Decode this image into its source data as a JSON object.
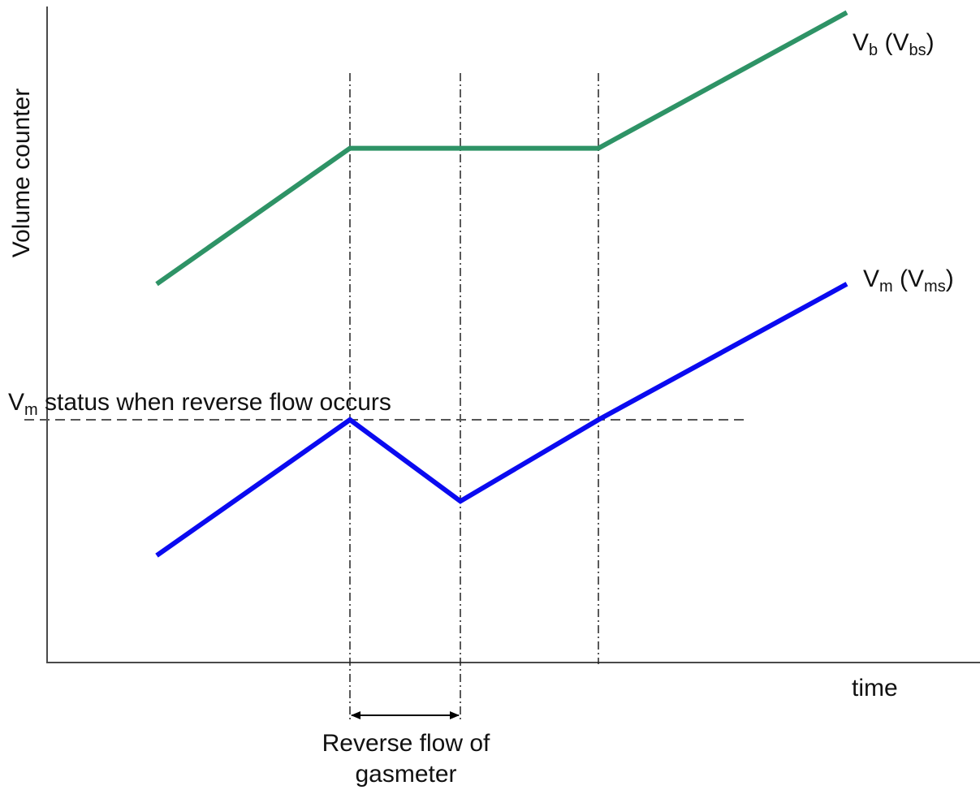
{
  "axes": {
    "y_label": "Volume counter",
    "x_label": "time"
  },
  "series": {
    "vb": {
      "label_main": "V",
      "label_sub": "b",
      "label_paren_open": " (V",
      "label_paren_sub": "bs",
      "label_paren_close": ")",
      "color": "#2e9366",
      "points": [
        [
          0,
          1.0
        ],
        [
          1,
          2.0
        ],
        [
          2,
          2.0
        ],
        [
          3,
          2.0
        ],
        [
          4,
          3.0
        ]
      ]
    },
    "vm": {
      "label_main": "V",
      "label_sub": "m",
      "label_paren_open": " (V",
      "label_paren_sub": "ms",
      "label_paren_close": ")",
      "color": "#0a0af0",
      "points": [
        [
          0,
          -1.0
        ],
        [
          1,
          0.0
        ],
        [
          2,
          -0.6
        ],
        [
          3,
          0.0
        ],
        [
          4,
          1.0
        ]
      ]
    }
  },
  "annotations": {
    "status_main": "V",
    "status_sub": "m",
    "status_text": " status when reverse flow occurs",
    "reverse_flow_line1": "Reverse flow of",
    "reverse_flow_line2": "gasmeter"
  }
}
